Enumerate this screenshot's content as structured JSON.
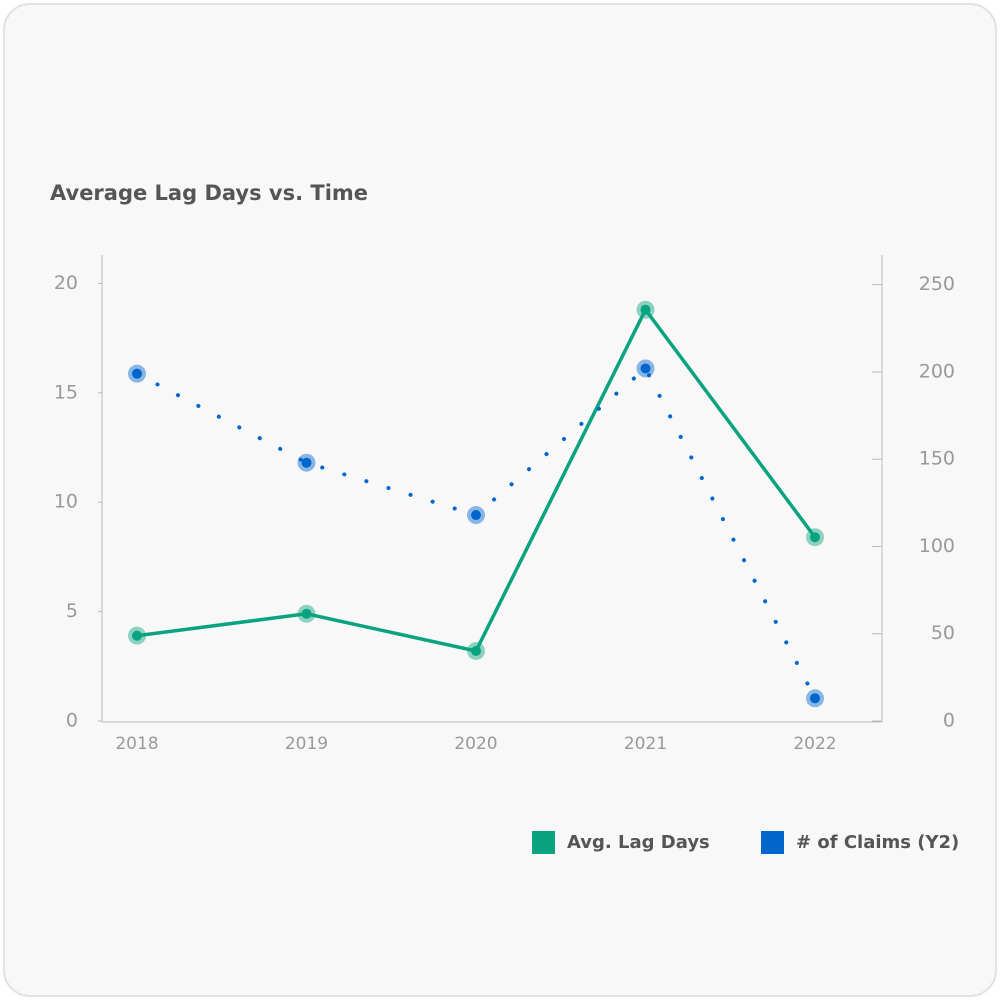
{
  "chart_data": {
    "type": "line",
    "title": "Average Lag Days vs. Time",
    "categories": [
      "2018",
      "2019",
      "2020",
      "2021",
      "2022"
    ],
    "series": [
      {
        "name": "Avg. Lag Days",
        "color": "#0aa37f",
        "values": [
          3.9,
          4.9,
          3.2,
          18.8,
          8.4
        ]
      },
      {
        "name": "# of Claims (Y2)",
        "color": "#0066cc",
        "axis": "y2",
        "values": [
          199,
          148,
          118,
          202,
          13
        ]
      }
    ],
    "ylim": [
      0,
      21.3
    ],
    "yticks": [
      0,
      5,
      10,
      15,
      20
    ],
    "y2lim": [
      0,
      267
    ],
    "y2ticks": [
      0,
      50,
      100,
      150,
      200,
      250
    ],
    "grid": false,
    "legend": "bottom-right"
  }
}
